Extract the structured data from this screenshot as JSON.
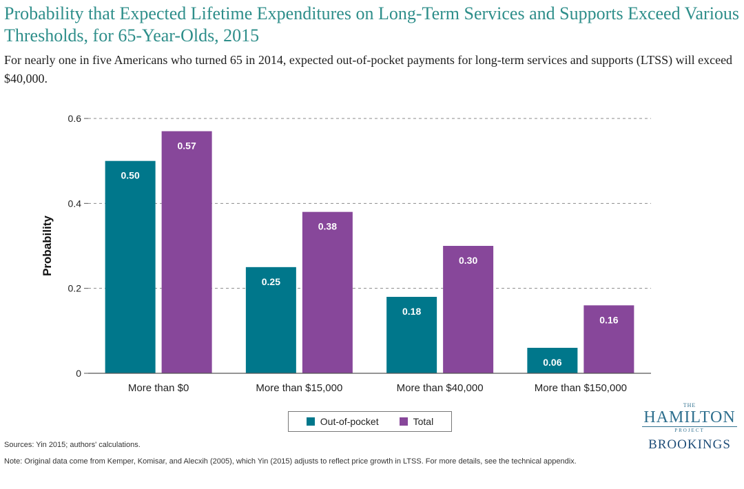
{
  "title": "Probability that Expected Lifetime Expenditures on Long-Term Services and Supports Exceed Various Thresholds, for 65-Year-Olds, 2015",
  "subtitle": "For nearly one in five Americans who turned 65 in 2014, expected out-of-pocket payments for long-term services and supports (LTSS) will exceed $40,000.",
  "sources": "Sources: Yin 2015; authors' calculations.",
  "note": "Note: Original data come from Kemper, Komisar, and Alecxih (2005), which Yin (2015) adjusts to reflect price growth in LTSS. For more details, see the technical appendix.",
  "logo": {
    "the": "THE",
    "hamilton": "HAMILTON",
    "project": "PROJECT",
    "brookings": "BROOKINGS"
  },
  "chart_data": {
    "type": "bar",
    "title": "",
    "xlabel": "",
    "ylabel": "Probability",
    "ylim": [
      0,
      0.6
    ],
    "yticks": [
      0,
      0.2,
      0.4,
      0.6
    ],
    "ytick_labels": [
      "0",
      "0.2",
      "0.4",
      "0.6"
    ],
    "grid": true,
    "legend_position": "bottom-center",
    "categories": [
      "More than $0",
      "More than $15,000",
      "More than $40,000",
      "More than $150,000"
    ],
    "series": [
      {
        "name": "Out-of-pocket",
        "color": "#00778b",
        "values": [
          0.5,
          0.25,
          0.18,
          0.06
        ],
        "labels": [
          "0.50",
          "0.25",
          "0.18",
          "0.06"
        ]
      },
      {
        "name": "Total",
        "color": "#87479a",
        "values": [
          0.57,
          0.38,
          0.3,
          0.16
        ],
        "labels": [
          "0.57",
          "0.38",
          "0.30",
          "0.16"
        ]
      }
    ]
  }
}
